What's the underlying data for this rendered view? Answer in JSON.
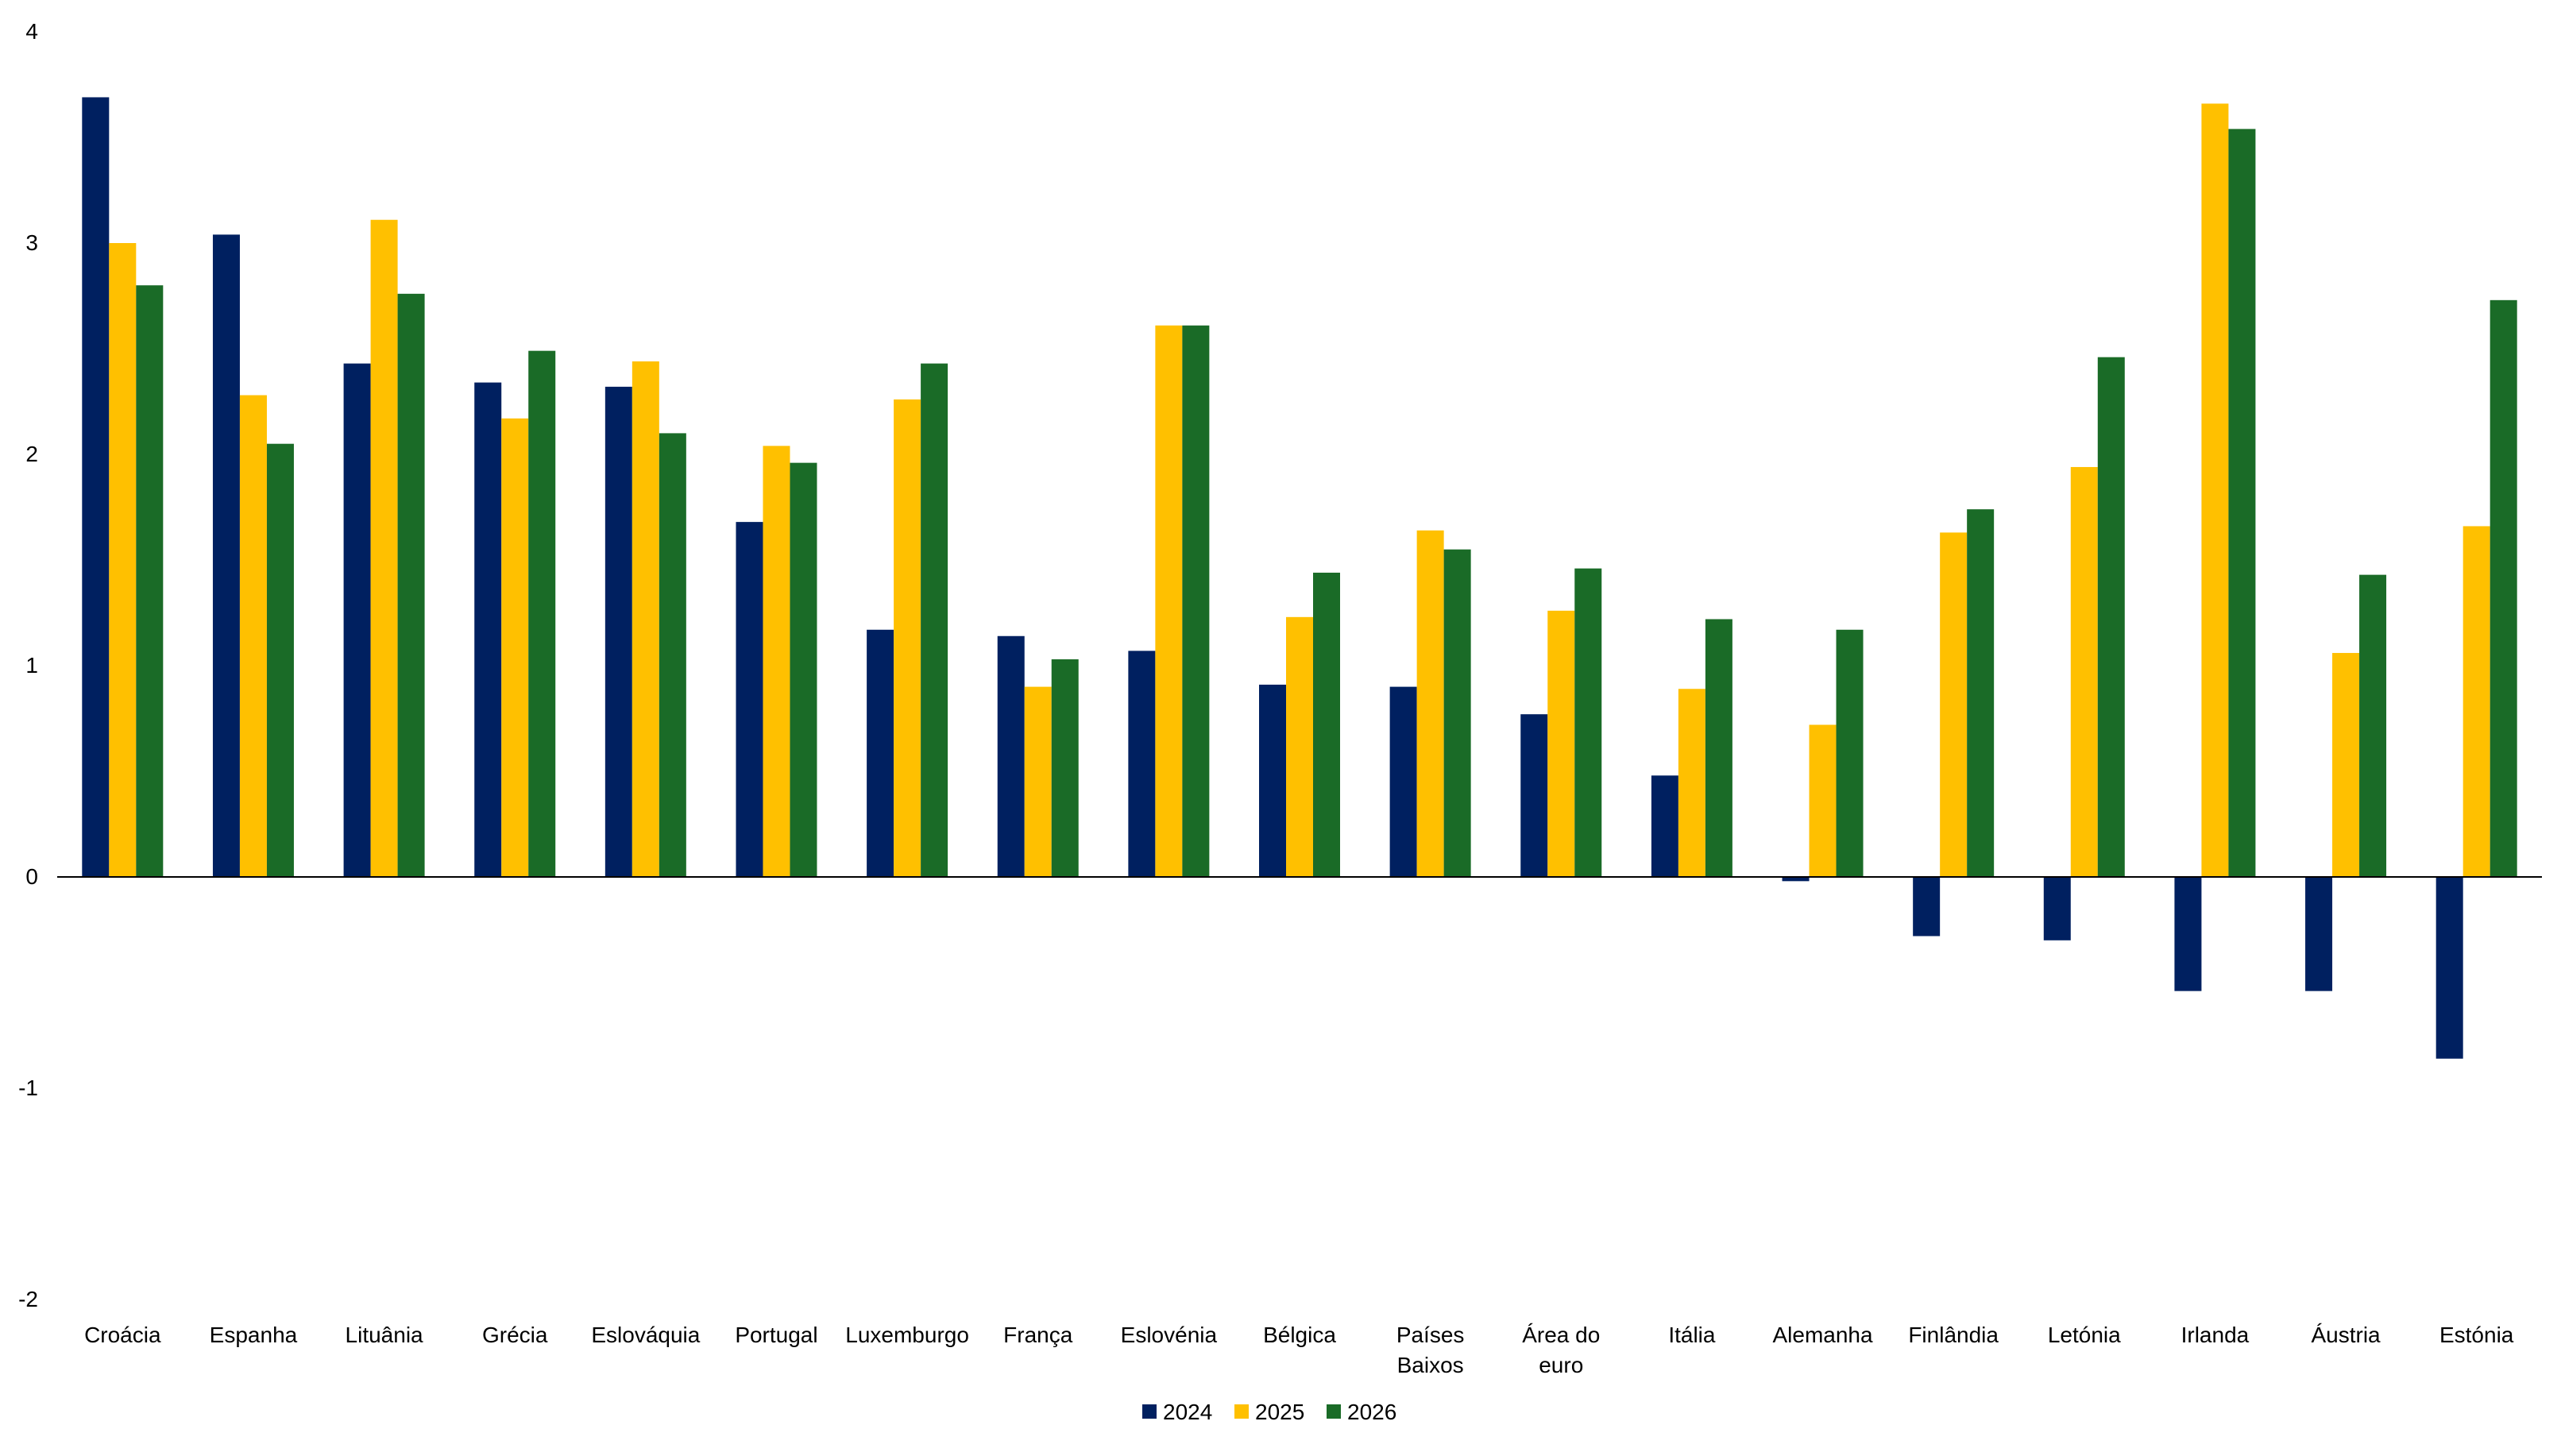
{
  "chart_data": {
    "type": "bar",
    "categories": [
      "Croácia",
      "Espanha",
      "Lituânia",
      "Grécia",
      "Eslováquia",
      "Portugal",
      "Luxemburgo",
      "França",
      "Eslovénia",
      "Bélgica",
      "Países Baixos",
      "Área do euro",
      "Itália",
      "Alemanha",
      "Finlândia",
      "Letónia",
      "Irlanda",
      "Áustria",
      "Estónia"
    ],
    "category_lines": [
      [
        "Croácia"
      ],
      [
        "Espanha"
      ],
      [
        "Lituânia"
      ],
      [
        "Grécia"
      ],
      [
        "Eslováquia"
      ],
      [
        "Portugal"
      ],
      [
        "Luxemburgo"
      ],
      [
        "França"
      ],
      [
        "Eslovénia"
      ],
      [
        "Bélgica"
      ],
      [
        "Países",
        "Baixos"
      ],
      [
        "Área do",
        "euro"
      ],
      [
        "Itália"
      ],
      [
        "Alemanha"
      ],
      [
        "Finlândia"
      ],
      [
        "Letónia"
      ],
      [
        "Irlanda"
      ],
      [
        "Áustria"
      ],
      [
        "Estónia"
      ]
    ],
    "series": [
      {
        "name": "2024",
        "color": "#002060",
        "values": [
          3.69,
          3.04,
          2.43,
          2.34,
          2.32,
          1.68,
          1.17,
          1.14,
          1.07,
          0.91,
          0.9,
          0.77,
          0.48,
          -0.02,
          -0.28,
          -0.3,
          -0.54,
          -0.54,
          -0.86
        ]
      },
      {
        "name": "2025",
        "color": "#FFC000",
        "values": [
          3.0,
          2.28,
          3.11,
          2.17,
          2.44,
          2.04,
          2.26,
          0.9,
          2.61,
          1.23,
          1.64,
          1.26,
          0.89,
          0.72,
          1.63,
          1.94,
          3.66,
          1.06,
          1.66
        ]
      },
      {
        "name": "2026",
        "color": "#1A6B27",
        "values": [
          2.8,
          2.05,
          2.76,
          2.49,
          2.1,
          1.96,
          2.43,
          1.03,
          2.61,
          1.44,
          1.55,
          1.46,
          1.22,
          1.17,
          1.74,
          2.46,
          3.54,
          1.43,
          2.73
        ]
      }
    ],
    "yticks": [
      "4",
      "3",
      "2",
      "1",
      "0",
      "-1",
      "-2"
    ],
    "ylim": [
      -2,
      4
    ],
    "title": "",
    "xlabel": "",
    "ylabel": "",
    "legend_position": "bottom-center",
    "grid": false
  }
}
